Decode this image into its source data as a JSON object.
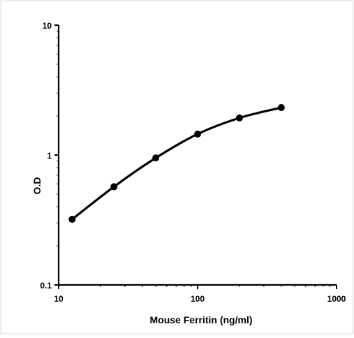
{
  "chart_data": {
    "type": "line",
    "title": "",
    "xlabel": "Mouse Ferritin (ng/ml)",
    "ylabel": "O.D",
    "x_scale": "log",
    "y_scale": "log",
    "xlim": [
      10,
      1000
    ],
    "ylim": [
      0.1,
      10
    ],
    "x_ticks": [
      10,
      100,
      1000
    ],
    "x_tick_labels": [
      "10",
      "100",
      "1000"
    ],
    "y_ticks": [
      0.1,
      1,
      10
    ],
    "y_tick_labels": [
      "0.1",
      "1",
      "10"
    ],
    "grid": false,
    "legend": "none",
    "series": [
      {
        "x": [
          12.5,
          25,
          50,
          100,
          200,
          400
        ],
        "y": [
          0.32,
          0.57,
          0.95,
          1.45,
          1.93,
          2.32
        ],
        "color": "#000000",
        "marker": "circle"
      }
    ]
  }
}
